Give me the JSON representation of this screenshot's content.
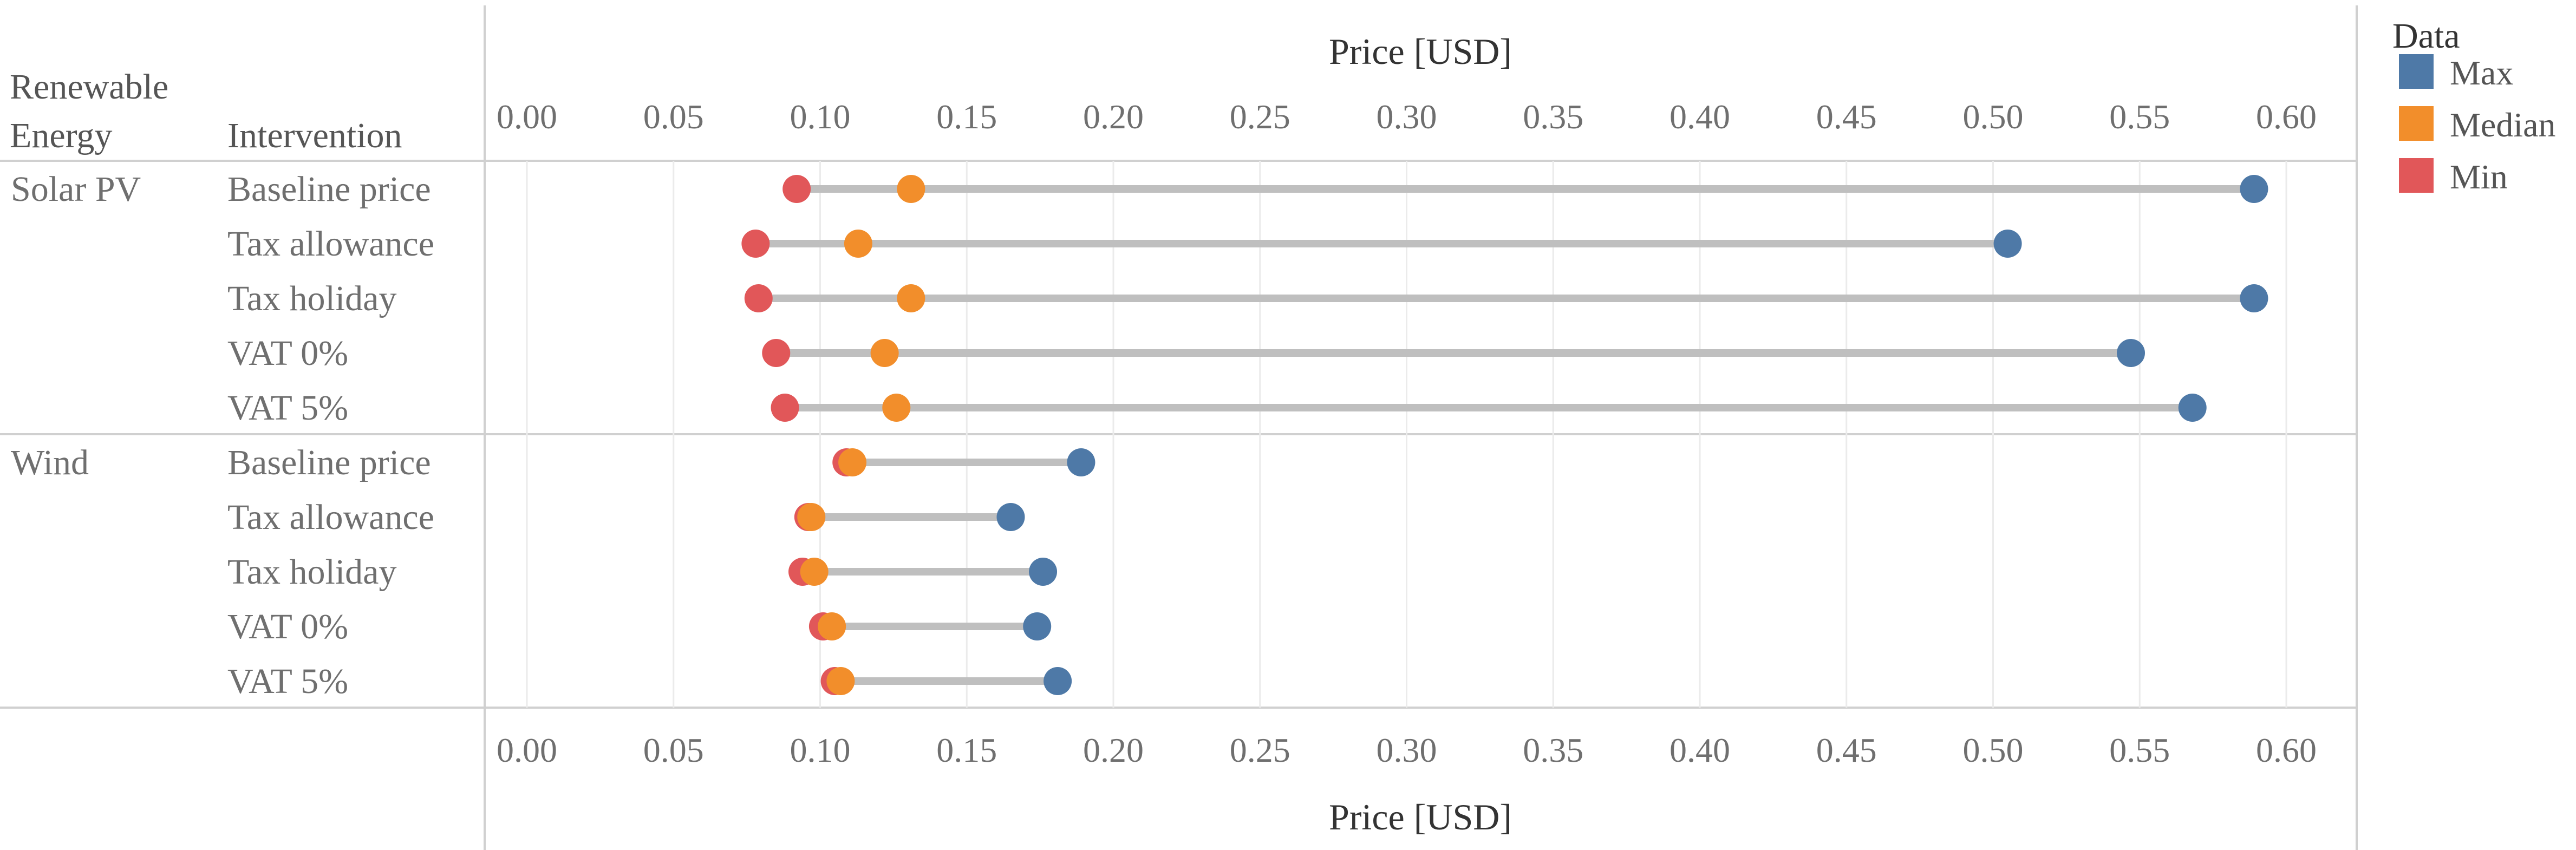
{
  "chart_data": {
    "type": "dumbbell",
    "row_headers": [
      "Renewable Energy",
      "Intervention"
    ],
    "x_axis": {
      "title": "Price [USD]",
      "ticks": [
        "0.00",
        "0.05",
        "0.10",
        "0.15",
        "0.20",
        "0.25",
        "0.30",
        "0.35",
        "0.40",
        "0.45",
        "0.50",
        "0.55",
        "0.60"
      ],
      "range": [
        -0.005,
        0.62
      ],
      "grid": true
    },
    "legend": {
      "title": "Data",
      "placement": "right",
      "items": [
        {
          "label": "Max",
          "color": "#4e79a7"
        },
        {
          "label": "Median",
          "color": "#f28e2b"
        },
        {
          "label": "Min",
          "color": "#e15759"
        }
      ]
    },
    "range_line_color": "#bfbfbf",
    "groups": [
      {
        "name": "Solar PV",
        "rows": [
          {
            "intervention": "Baseline price",
            "min": 0.092,
            "median": 0.131,
            "max": 0.589
          },
          {
            "intervention": "Tax allowance",
            "min": 0.078,
            "median": 0.113,
            "max": 0.505
          },
          {
            "intervention": "Tax holiday",
            "min": 0.079,
            "median": 0.131,
            "max": 0.589
          },
          {
            "intervention": "VAT 0%",
            "min": 0.085,
            "median": 0.122,
            "max": 0.547
          },
          {
            "intervention": "VAT 5%",
            "min": 0.088,
            "median": 0.126,
            "max": 0.568
          }
        ]
      },
      {
        "name": "Wind",
        "rows": [
          {
            "intervention": "Baseline price",
            "min": 0.109,
            "median": 0.111,
            "max": 0.189
          },
          {
            "intervention": "Tax allowance",
            "min": 0.096,
            "median": 0.097,
            "max": 0.165
          },
          {
            "intervention": "Tax holiday",
            "min": 0.094,
            "median": 0.098,
            "max": 0.176
          },
          {
            "intervention": "VAT 0%",
            "min": 0.101,
            "median": 0.104,
            "max": 0.174
          },
          {
            "intervention": "VAT 5%",
            "min": 0.105,
            "median": 0.107,
            "max": 0.181
          }
        ]
      }
    ]
  }
}
